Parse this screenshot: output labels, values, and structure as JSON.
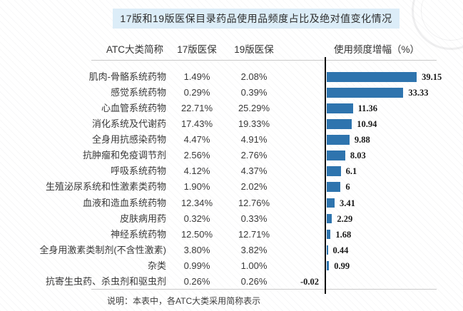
{
  "title": "17版和19版医保目录药品使用品频度占比及绝对值变化情况",
  "header": {
    "category": "ATC大类简称",
    "v17": "17版医保",
    "v19": "19版医保",
    "increase": "使用频度增幅（%）"
  },
  "note": "说明：本表中，各ATC大类采用简称表示",
  "colors": {
    "bar": "#2E74AE",
    "title_bg": "#DCEDF8",
    "axis": "#111111",
    "divider": "#C9C9C9",
    "value_label": "#1A1A1A"
  },
  "chart_data": {
    "type": "bar",
    "orientation": "horizontal",
    "title": "17版和19版医保目录药品使用品频度占比及绝对值变化情况",
    "categories": [
      "肌肉-骨骼系统药物",
      "感觉系统药物",
      "心血管系统药物",
      "消化系统及代谢药",
      "全身用抗感染药物",
      "抗肿瘤和免疫调节剂",
      "呼吸系统药物",
      "生殖泌尿系统和性激素类药物",
      "血液和造血系统药物",
      "皮肤病用药",
      "神经系统药物",
      "全身用激素类制剂(不含性激素)",
      "杂类",
      "抗寄生虫药、杀虫剂和驱虫剂"
    ],
    "table_series": [
      {
        "name": "17版医保",
        "values": [
          "1.49%",
          "0.29%",
          "22.71%",
          "17.43%",
          "4.47%",
          "2.56%",
          "4.12%",
          "1.90%",
          "12.34%",
          "0.32%",
          "12.50%",
          "3.80%",
          "0.99%",
          "0.26%"
        ]
      },
      {
        "name": "19版医保",
        "values": [
          "2.08%",
          "0.39%",
          "25.29%",
          "19.33%",
          "4.91%",
          "2.76%",
          "4.37%",
          "2.02%",
          "12.76%",
          "0.33%",
          "12.71%",
          "3.82%",
          "1.00%",
          "0.26%"
        ]
      }
    ],
    "bar_series": {
      "name": "使用频度增幅（%）",
      "values": [
        39.15,
        33.33,
        11.36,
        10.94,
        9.88,
        8.03,
        6.1,
        6,
        3.41,
        2.29,
        1.68,
        0.44,
        0.99,
        -0.02
      ],
      "labels": [
        "39.15",
        "33.33",
        "11.36",
        "10.94",
        "9.88",
        "8.03",
        "6.1",
        "6",
        "3.41",
        "2.29",
        "1.68",
        "0.44",
        "0.99",
        "-0.02"
      ]
    },
    "xlim": [
      0,
      40
    ],
    "grid": false,
    "legend": false
  }
}
